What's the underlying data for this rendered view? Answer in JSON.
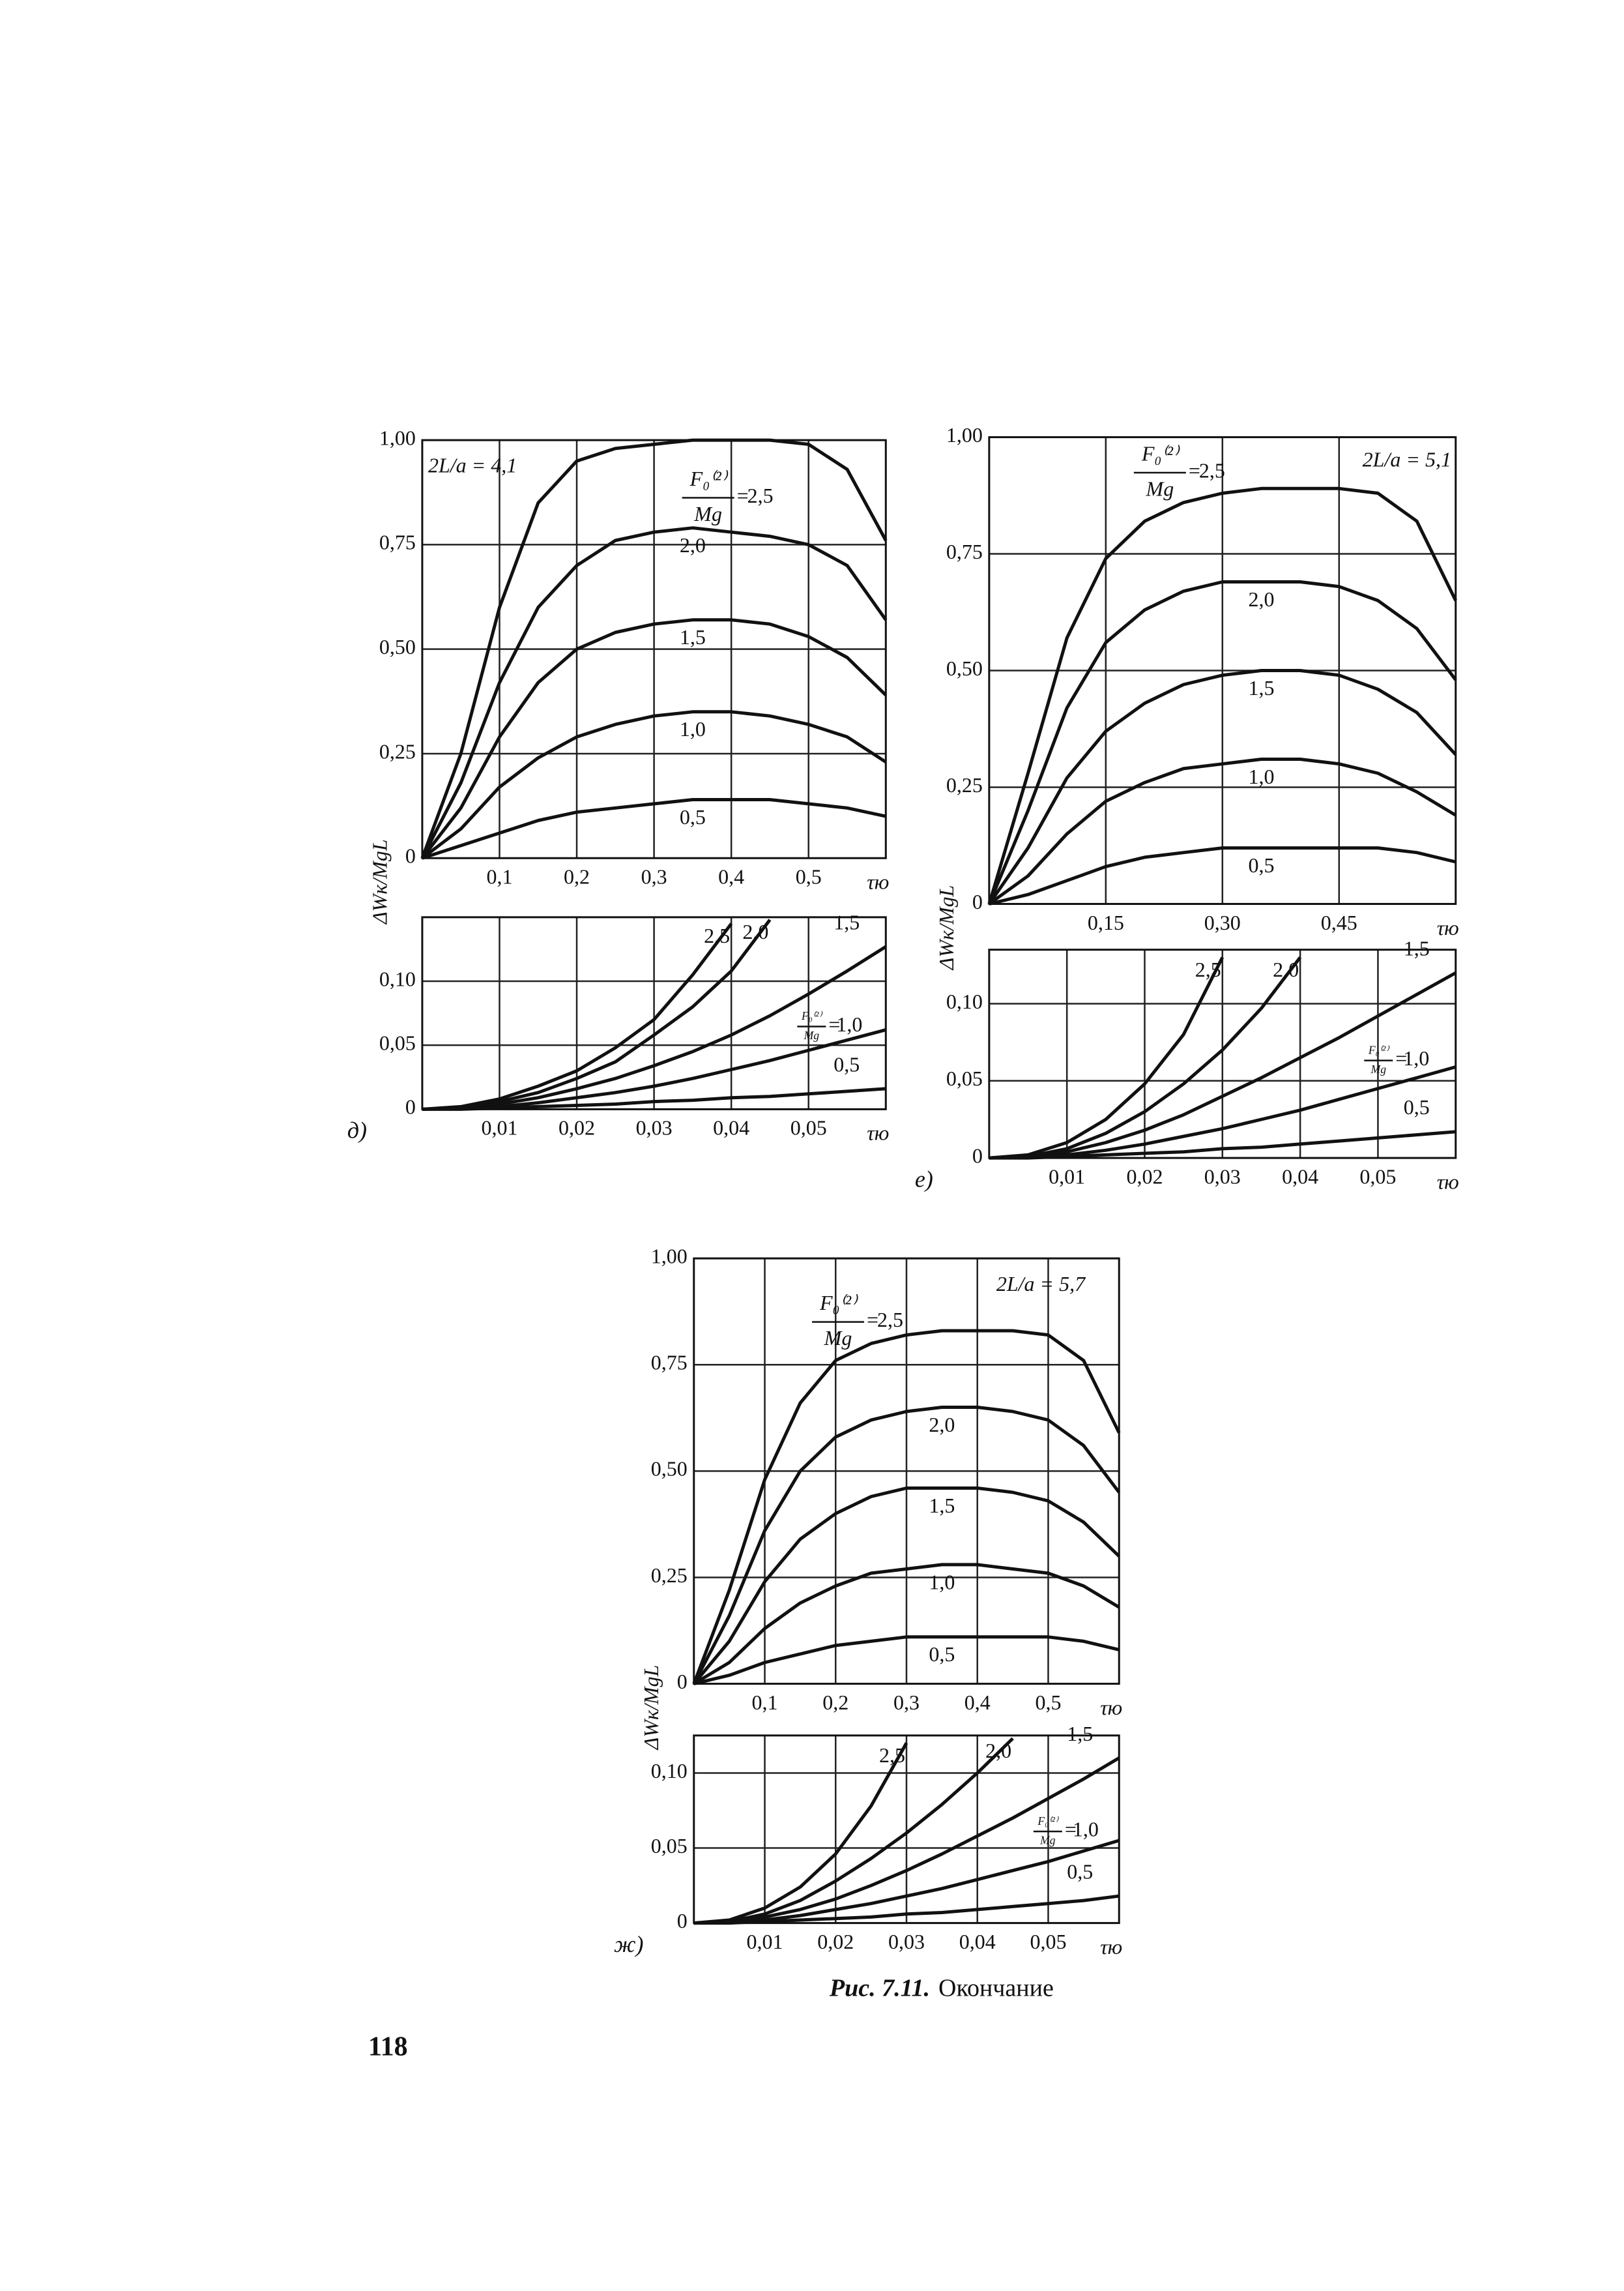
{
  "chart_data": [
    {
      "type": "line",
      "annotation": "2L/a = 4,1",
      "y_label": "ΔWк/MgL",
      "x_label": "τю",
      "color": "#111111",
      "grid": true,
      "legend_title": {
        "numerator": "F₀⁽²⁾",
        "denominator": "Mg",
        "sign": "="
      },
      "x": [
        0,
        0.05,
        0.1,
        0.15,
        0.2,
        0.25,
        0.3,
        0.35,
        0.4,
        0.45,
        0.5,
        0.55,
        0.6
      ],
      "xlim": [
        0,
        0.6
      ],
      "ylim": [
        0,
        1
      ],
      "xticks": [
        {
          "value": 0.1,
          "label": "0,1"
        },
        {
          "value": 0.2,
          "label": "0,2"
        },
        {
          "value": 0.3,
          "label": "0,3"
        },
        {
          "value": 0.4,
          "label": "0,4"
        },
        {
          "value": 0.5,
          "label": "0,5"
        }
      ],
      "yticks": [
        0,
        {
          "value": 0.25,
          "label": "0,25"
        },
        {
          "value": 0.5,
          "label": "0,50"
        },
        {
          "value": 0.75,
          "label": "0,75"
        },
        {
          "value": 1,
          "label": "1,00"
        }
      ],
      "series": [
        {
          "name": "2,5",
          "values": [
            0,
            0.25,
            0.6,
            0.85,
            0.95,
            0.98,
            0.99,
            1.0,
            1.0,
            1.0,
            0.99,
            0.93,
            0.76
          ]
        },
        {
          "name": "2,0",
          "values": [
            0,
            0.18,
            0.42,
            0.6,
            0.7,
            0.76,
            0.78,
            0.79,
            0.78,
            0.77,
            0.75,
            0.7,
            0.57
          ]
        },
        {
          "name": "1,5",
          "values": [
            0,
            0.12,
            0.29,
            0.42,
            0.5,
            0.54,
            0.56,
            0.57,
            0.57,
            0.56,
            0.53,
            0.48,
            0.39
          ]
        },
        {
          "name": "1,0",
          "values": [
            0,
            0.07,
            0.17,
            0.24,
            0.29,
            0.32,
            0.34,
            0.35,
            0.35,
            0.34,
            0.32,
            0.29,
            0.23
          ]
        },
        {
          "name": "0,5",
          "values": [
            0,
            0.03,
            0.06,
            0.09,
            0.11,
            0.12,
            0.13,
            0.14,
            0.14,
            0.14,
            0.13,
            0.12,
            0.1
          ]
        }
      ]
    },
    {
      "type": "line",
      "panel": "д)",
      "x_label": "τю",
      "color": "#111111",
      "grid": true,
      "legend_title": {
        "numerator": "F₀⁽²⁾",
        "denominator": "Mg",
        "sign": "="
      },
      "x": [
        0,
        0.005,
        0.01,
        0.015,
        0.02,
        0.025,
        0.03,
        0.035,
        0.04,
        0.045,
        0.05,
        0.055,
        0.06
      ],
      "xlim": [
        0,
        0.06
      ],
      "ylim": [
        0,
        0.15
      ],
      "xticks": [
        {
          "value": 0.01,
          "label": "0,01"
        },
        {
          "value": 0.02,
          "label": "0,02"
        },
        {
          "value": 0.03,
          "label": "0,03"
        },
        {
          "value": 0.04,
          "label": "0,04"
        },
        {
          "value": 0.05,
          "label": "0,05"
        }
      ],
      "yticks": [
        0,
        {
          "value": 0.05,
          "label": "0,05"
        },
        {
          "value": 0.1,
          "label": "0,10"
        }
      ],
      "series": [
        {
          "name": "2,5",
          "values": [
            0,
            0.002,
            0.008,
            0.018,
            0.03,
            0.048,
            0.07,
            0.105,
            0.145,
            null,
            null,
            null,
            null
          ]
        },
        {
          "name": "2,0",
          "values": [
            0,
            0.001,
            0.006,
            0.013,
            0.024,
            0.037,
            0.058,
            0.08,
            0.108,
            0.148,
            null,
            null,
            null
          ]
        },
        {
          "name": "1,5",
          "values": [
            0,
            0.001,
            0.004,
            0.009,
            0.016,
            0.024,
            0.034,
            0.045,
            0.058,
            0.073,
            0.09,
            0.108,
            0.127
          ]
        },
        {
          "name": "1,0",
          "values": [
            0,
            0.0005,
            0.002,
            0.005,
            0.009,
            0.013,
            0.018,
            0.024,
            0.031,
            0.038,
            0.046,
            0.054,
            0.062
          ]
        },
        {
          "name": "0,5",
          "values": [
            0,
            0,
            0.001,
            0.002,
            0.003,
            0.004,
            0.006,
            0.007,
            0.009,
            0.01,
            0.012,
            0.014,
            0.016
          ]
        }
      ]
    },
    {
      "type": "line",
      "annotation": "2L/a = 5,1",
      "y_label": "ΔWк/MgL",
      "x_label": "τю",
      "color": "#111111",
      "grid": true,
      "legend_title": {
        "numerator": "F₀⁽²⁾",
        "denominator": "Mg",
        "sign": "="
      },
      "x": [
        0,
        0.05,
        0.1,
        0.15,
        0.2,
        0.25,
        0.3,
        0.35,
        0.4,
        0.45,
        0.5,
        0.55,
        0.6
      ],
      "xlim": [
        0,
        0.6
      ],
      "ylim": [
        0,
        1
      ],
      "xticks": [
        {
          "value": 0.15,
          "label": "0,15"
        },
        {
          "value": 0.3,
          "label": "0,30"
        },
        {
          "value": 0.45,
          "label": "0,45"
        }
      ],
      "yticks": [
        0,
        {
          "value": 0.25,
          "label": "0,25"
        },
        {
          "value": 0.5,
          "label": "0,50"
        },
        {
          "value": 0.75,
          "label": "0,75"
        },
        {
          "value": 1,
          "label": "1,00"
        }
      ],
      "series": [
        {
          "name": "2,5",
          "values": [
            0,
            0.28,
            0.57,
            0.74,
            0.82,
            0.86,
            0.88,
            0.89,
            0.89,
            0.89,
            0.88,
            0.82,
            0.65
          ]
        },
        {
          "name": "2,0",
          "values": [
            0,
            0.2,
            0.42,
            0.56,
            0.63,
            0.67,
            0.69,
            0.69,
            0.69,
            0.68,
            0.65,
            0.59,
            0.48
          ]
        },
        {
          "name": "1,5",
          "values": [
            0,
            0.12,
            0.27,
            0.37,
            0.43,
            0.47,
            0.49,
            0.5,
            0.5,
            0.49,
            0.46,
            0.41,
            0.32
          ]
        },
        {
          "name": "1,0",
          "values": [
            0,
            0.06,
            0.15,
            0.22,
            0.26,
            0.29,
            0.3,
            0.31,
            0.31,
            0.3,
            0.28,
            0.24,
            0.19
          ]
        },
        {
          "name": "0,5",
          "values": [
            0,
            0.02,
            0.05,
            0.08,
            0.1,
            0.11,
            0.12,
            0.12,
            0.12,
            0.12,
            0.12,
            0.11,
            0.09
          ]
        }
      ]
    },
    {
      "type": "line",
      "panel": "е)",
      "x_label": "τю",
      "color": "#111111",
      "grid": true,
      "legend_title": {
        "numerator": "F₀⁽²⁾",
        "denominator": "Mg",
        "sign": "="
      },
      "x": [
        0,
        0.005,
        0.01,
        0.015,
        0.02,
        0.025,
        0.03,
        0.035,
        0.04,
        0.045,
        0.05,
        0.055,
        0.06
      ],
      "xlim": [
        0,
        0.06
      ],
      "ylim": [
        0,
        0.135
      ],
      "xticks": [
        {
          "value": 0.01,
          "label": "0,01"
        },
        {
          "value": 0.02,
          "label": "0,02"
        },
        {
          "value": 0.03,
          "label": "0,03"
        },
        {
          "value": 0.04,
          "label": "0,04"
        },
        {
          "value": 0.05,
          "label": "0,05"
        }
      ],
      "yticks": [
        0,
        {
          "value": 0.05,
          "label": "0,05"
        },
        {
          "value": 0.1,
          "label": "0,10"
        }
      ],
      "series": [
        {
          "name": "2,5",
          "values": [
            0,
            0.002,
            0.01,
            0.025,
            0.048,
            0.08,
            0.13,
            null,
            null,
            null,
            null,
            null,
            null
          ]
        },
        {
          "name": "2,0",
          "values": [
            0,
            0.001,
            0.006,
            0.016,
            0.03,
            0.048,
            0.07,
            0.097,
            0.13,
            null,
            null,
            null,
            null
          ]
        },
        {
          "name": "1,5",
          "values": [
            0,
            0.001,
            0.004,
            0.01,
            0.018,
            0.028,
            0.04,
            0.052,
            0.065,
            0.078,
            0.092,
            0.106,
            0.12
          ]
        },
        {
          "name": "1,0",
          "values": [
            0,
            0.0005,
            0.002,
            0.005,
            0.009,
            0.014,
            0.019,
            0.025,
            0.031,
            0.038,
            0.045,
            0.052,
            0.059
          ]
        },
        {
          "name": "0,5",
          "values": [
            0,
            0,
            0.001,
            0.002,
            0.003,
            0.004,
            0.006,
            0.007,
            0.009,
            0.011,
            0.013,
            0.015,
            0.017
          ]
        }
      ]
    },
    {
      "type": "line",
      "annotation": "2L/a = 5,7",
      "y_label": "ΔWк/MgL",
      "x_label": "τю",
      "color": "#111111",
      "grid": true,
      "legend_title": {
        "numerator": "F₀⁽²⁾",
        "denominator": "Mg",
        "sign": "="
      },
      "x": [
        0,
        0.05,
        0.1,
        0.15,
        0.2,
        0.25,
        0.3,
        0.35,
        0.4,
        0.45,
        0.5,
        0.55,
        0.6
      ],
      "xlim": [
        0,
        0.6
      ],
      "ylim": [
        0,
        1
      ],
      "xticks": [
        {
          "value": 0.1,
          "label": "0,1"
        },
        {
          "value": 0.2,
          "label": "0,2"
        },
        {
          "value": 0.3,
          "label": "0,3"
        },
        {
          "value": 0.4,
          "label": "0,4"
        },
        {
          "value": 0.5,
          "label": "0,5"
        }
      ],
      "yticks": [
        0,
        {
          "value": 0.25,
          "label": "0,25"
        },
        {
          "value": 0.5,
          "label": "0,50"
        },
        {
          "value": 0.75,
          "label": "0,75"
        },
        {
          "value": 1,
          "label": "1,00"
        }
      ],
      "series": [
        {
          "name": "2,5",
          "values": [
            0,
            0.22,
            0.48,
            0.66,
            0.76,
            0.8,
            0.82,
            0.83,
            0.83,
            0.83,
            0.82,
            0.76,
            0.59
          ]
        },
        {
          "name": "2,0",
          "values": [
            0,
            0.16,
            0.36,
            0.5,
            0.58,
            0.62,
            0.64,
            0.65,
            0.65,
            0.64,
            0.62,
            0.56,
            0.45
          ]
        },
        {
          "name": "1,5",
          "values": [
            0,
            0.1,
            0.24,
            0.34,
            0.4,
            0.44,
            0.46,
            0.46,
            0.46,
            0.45,
            0.43,
            0.38,
            0.3
          ]
        },
        {
          "name": "1,0",
          "values": [
            0,
            0.05,
            0.13,
            0.19,
            0.23,
            0.26,
            0.27,
            0.28,
            0.28,
            0.27,
            0.26,
            0.23,
            0.18
          ]
        },
        {
          "name": "0,5",
          "values": [
            0,
            0.02,
            0.05,
            0.07,
            0.09,
            0.1,
            0.11,
            0.11,
            0.11,
            0.11,
            0.11,
            0.1,
            0.08
          ]
        }
      ]
    },
    {
      "type": "line",
      "panel": "ж)",
      "x_label": "τю",
      "color": "#111111",
      "grid": true,
      "legend_title": {
        "numerator": "F₀⁽²⁾",
        "denominator": "Mg",
        "sign": "="
      },
      "x": [
        0,
        0.005,
        0.01,
        0.015,
        0.02,
        0.025,
        0.03,
        0.035,
        0.04,
        0.045,
        0.05,
        0.055,
        0.06
      ],
      "xlim": [
        0,
        0.06
      ],
      "ylim": [
        0,
        0.125
      ],
      "xticks": [
        {
          "value": 0.01,
          "label": "0,01"
        },
        {
          "value": 0.02,
          "label": "0,02"
        },
        {
          "value": 0.03,
          "label": "0,03"
        },
        {
          "value": 0.04,
          "label": "0,04"
        },
        {
          "value": 0.05,
          "label": "0,05"
        }
      ],
      "yticks": [
        0,
        {
          "value": 0.05,
          "label": "0,05"
        },
        {
          "value": 0.1,
          "label": "0,10"
        }
      ],
      "series": [
        {
          "name": "2,5",
          "values": [
            0,
            0.002,
            0.01,
            0.024,
            0.046,
            0.078,
            0.12,
            null,
            null,
            null,
            null,
            null,
            null
          ]
        },
        {
          "name": "2,0",
          "values": [
            0,
            0.001,
            0.006,
            0.015,
            0.028,
            0.043,
            0.06,
            0.079,
            0.1,
            0.123,
            null,
            null,
            null
          ]
        },
        {
          "name": "1,5",
          "values": [
            0,
            0.001,
            0.004,
            0.009,
            0.016,
            0.025,
            0.035,
            0.046,
            0.058,
            0.07,
            0.083,
            0.096,
            0.11
          ]
        },
        {
          "name": "1,0",
          "values": [
            0,
            0.0005,
            0.002,
            0.005,
            0.009,
            0.013,
            0.018,
            0.023,
            0.029,
            0.035,
            0.041,
            0.048,
            0.055
          ]
        },
        {
          "name": "0,5",
          "values": [
            0,
            0,
            0.001,
            0.002,
            0.003,
            0.004,
            0.006,
            0.007,
            0.009,
            0.011,
            0.013,
            0.015,
            0.018
          ]
        }
      ]
    }
  ],
  "caption": {
    "label": "Рис. 7.11.",
    "text": "Окончание"
  },
  "page_number": "118"
}
